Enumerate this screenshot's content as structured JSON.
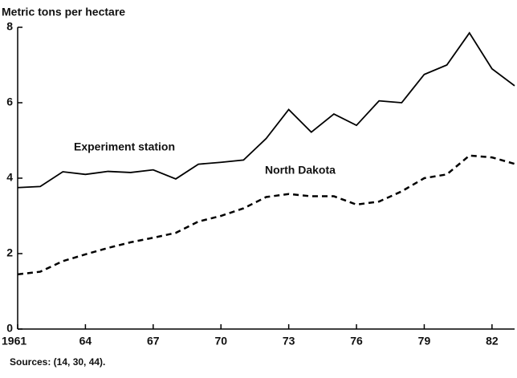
{
  "chart_data": {
    "type": "line",
    "y_axis_label": "Metric tons per hectare",
    "source": "Sources:  (14, 30, 44).",
    "x": [
      1961,
      1962,
      1963,
      1964,
      1965,
      1966,
      1967,
      1968,
      1969,
      1970,
      1971,
      1972,
      1973,
      1974,
      1975,
      1976,
      1977,
      1978,
      1979,
      1980,
      1981,
      1982,
      1983
    ],
    "series": [
      {
        "name": "Experiment station",
        "color": "#000000",
        "style": "solid",
        "values": [
          3.75,
          3.78,
          4.17,
          4.1,
          4.18,
          4.15,
          4.22,
          3.98,
          4.37,
          4.42,
          4.48,
          5.05,
          5.82,
          5.22,
          5.7,
          5.4,
          6.05,
          6.0,
          6.75,
          7.0,
          7.85,
          6.9,
          6.45
        ]
      },
      {
        "name": "North Dakota",
        "color": "#000000",
        "style": "dashed",
        "values": [
          1.45,
          1.52,
          1.8,
          1.98,
          2.15,
          2.3,
          2.42,
          2.55,
          2.85,
          3.0,
          3.2,
          3.5,
          3.58,
          3.52,
          3.52,
          3.3,
          3.38,
          3.65,
          4.0,
          4.1,
          4.6,
          4.55,
          4.38
        ]
      }
    ],
    "xlim": [
      1961,
      1983
    ],
    "xticks": [
      1961,
      {
        "value": 1964,
        "label": "64"
      },
      {
        "value": 1967,
        "label": "67"
      },
      {
        "value": 1970,
        "label": "70"
      },
      {
        "value": 1973,
        "label": "73"
      },
      {
        "value": 1976,
        "label": "76"
      },
      {
        "value": 1979,
        "label": "79"
      },
      {
        "value": 1982,
        "label": "82"
      }
    ],
    "ylim": [
      0,
      8
    ],
    "yticks": [
      0,
      2,
      4,
      6,
      8
    ],
    "grid": false
  }
}
